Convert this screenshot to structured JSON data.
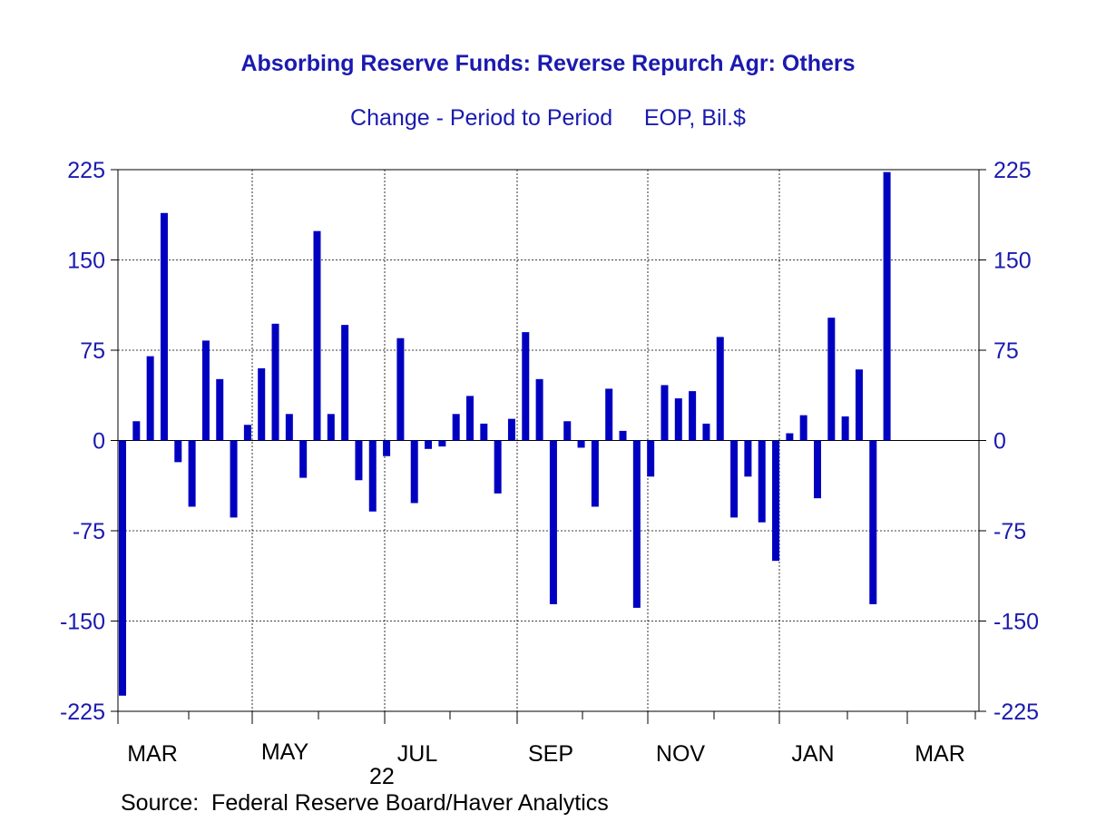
{
  "chart_data": {
    "type": "bar",
    "title": "Absorbing Reserve Funds: Reverse Repurch Agr: Others",
    "subtitle": "Change - Period to Period     EOP, Bil.$",
    "source": "Source:  Federal Reserve Board/Haver Analytics",
    "year_label": "22",
    "ylim": [
      -225,
      225
    ],
    "yticks": [
      225,
      150,
      75,
      0,
      -75,
      -150,
      -225
    ],
    "xtick_labels": [
      "MAR",
      "MAY",
      "JUL",
      "SEP",
      "NOV",
      "JAN",
      "MAR"
    ],
    "grid": true,
    "color": "#0000c0",
    "values": [
      -212,
      16,
      70,
      189,
      -18,
      -55,
      83,
      51,
      -64,
      13,
      60,
      97,
      22,
      -31,
      174,
      22,
      96,
      -33,
      -59,
      -13,
      85,
      -52,
      -7,
      -5,
      22,
      37,
      14,
      -44,
      18,
      90,
      51,
      -136,
      16,
      -6,
      -55,
      43,
      8,
      -139,
      -30,
      46,
      35,
      41,
      14,
      86,
      -64,
      -30,
      -68,
      -100,
      6,
      21,
      -48,
      102,
      20,
      59,
      -136,
      223
    ]
  }
}
